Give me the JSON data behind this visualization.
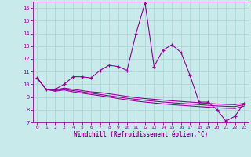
{
  "xlabel": "Windchill (Refroidissement éolien,°C)",
  "background_color": "#c8eaea",
  "grid_color": "#aad4d4",
  "line_color": "#990099",
  "spine_color": "#990099",
  "xlim": [
    -0.5,
    23.5
  ],
  "ylim": [
    7,
    16.5
  ],
  "yticks": [
    7,
    8,
    9,
    10,
    11,
    12,
    13,
    14,
    15,
    16
  ],
  "xticks": [
    0,
    1,
    2,
    3,
    4,
    5,
    6,
    7,
    8,
    9,
    10,
    11,
    12,
    13,
    14,
    15,
    16,
    17,
    18,
    19,
    20,
    21,
    22,
    23
  ],
  "line1_x": [
    0,
    1,
    2,
    3,
    4,
    5,
    6,
    7,
    8,
    9,
    10,
    11,
    12,
    13,
    14,
    15,
    16,
    17,
    18,
    19,
    20,
    21,
    22,
    23
  ],
  "line1_y": [
    10.5,
    9.6,
    9.6,
    10.0,
    10.6,
    10.6,
    10.5,
    11.1,
    11.5,
    11.4,
    11.1,
    14.0,
    16.4,
    11.4,
    12.7,
    13.1,
    12.5,
    10.7,
    8.6,
    8.6,
    8.0,
    7.1,
    7.5,
    8.5
  ],
  "line2_y": [
    10.5,
    9.6,
    9.55,
    9.7,
    9.6,
    9.5,
    9.4,
    9.35,
    9.25,
    9.15,
    9.05,
    8.95,
    8.88,
    8.82,
    8.76,
    8.7,
    8.65,
    8.6,
    8.55,
    8.5,
    8.45,
    8.42,
    8.4,
    8.5
  ],
  "line3_y": [
    10.5,
    9.6,
    9.5,
    9.6,
    9.5,
    9.4,
    9.3,
    9.2,
    9.1,
    9.0,
    8.9,
    8.82,
    8.74,
    8.67,
    8.61,
    8.55,
    8.5,
    8.45,
    8.4,
    8.35,
    8.3,
    8.27,
    8.25,
    8.4
  ],
  "line4_y": [
    10.5,
    9.6,
    9.45,
    9.55,
    9.4,
    9.3,
    9.2,
    9.1,
    9.0,
    8.88,
    8.78,
    8.68,
    8.6,
    8.53,
    8.46,
    8.4,
    8.35,
    8.3,
    8.25,
    8.2,
    8.15,
    8.12,
    8.1,
    8.28
  ]
}
